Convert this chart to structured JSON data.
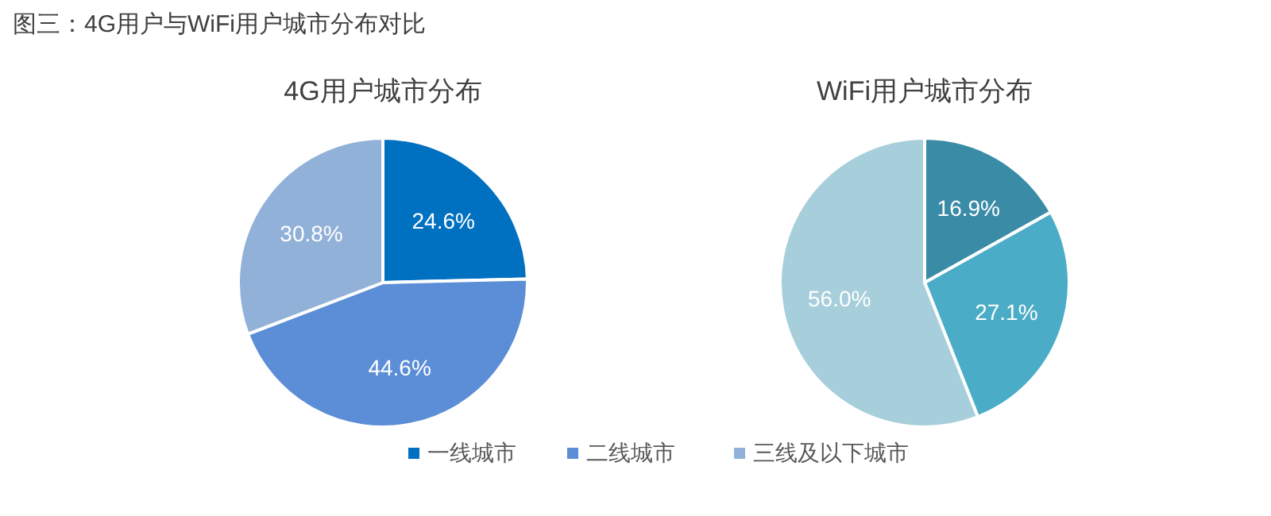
{
  "chart_data": [
    {
      "type": "pie",
      "title": "4G用户城市分布",
      "annotations": [
        "图三：4G用户与WiFi用户城市分布对比"
      ],
      "categories": [
        "一线城市",
        "二线城市",
        "三线及以下城市"
      ],
      "values": [
        24.6,
        44.6,
        30.8
      ],
      "value_labels": [
        "24.6%",
        "44.6%",
        "30.8%"
      ],
      "colors": [
        "#0070c0",
        "#5b8ed6",
        "#92b1d9"
      ],
      "legend": "bottom"
    },
    {
      "type": "pie",
      "title": "WiFi用户城市分布",
      "categories": [
        null,
        null,
        null
      ],
      "values": [
        16.9,
        27.1,
        56.0
      ],
      "value_labels": [
        "16.9%",
        "27.1%",
        "56.0%"
      ],
      "colors": [
        "#3a8ba6",
        "#4aacc6",
        "#a7cedb"
      ]
    }
  ]
}
